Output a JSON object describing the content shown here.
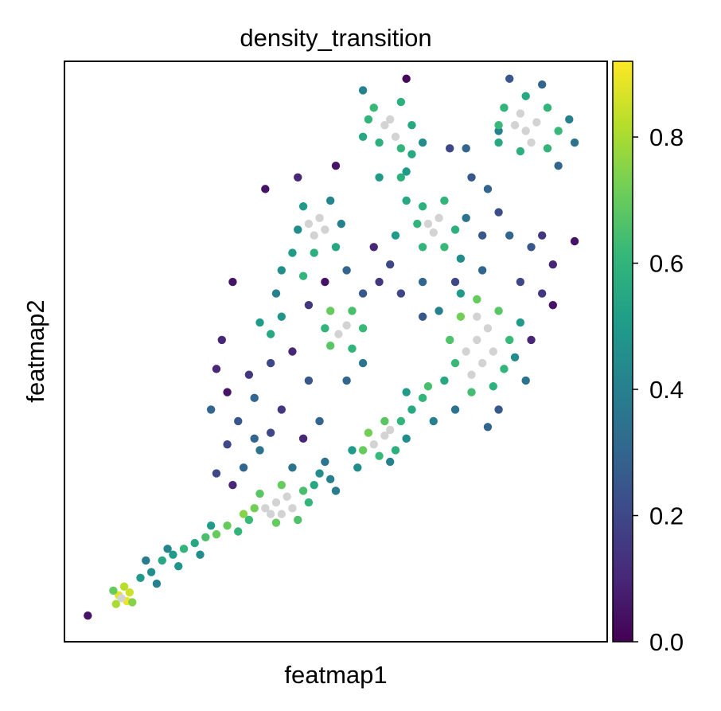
{
  "chart_data": {
    "type": "scatter",
    "title": "density_transition",
    "x_label": "featmap1",
    "y_label": "featmap2",
    "xlim": [
      0,
      100
    ],
    "ylim": [
      0,
      100
    ],
    "na_color": "#d3d3d3",
    "x": [
      62,
      58,
      55,
      66,
      60,
      57,
      52,
      48,
      45,
      42,
      38,
      35,
      32,
      30,
      33,
      36,
      28,
      31,
      40,
      45,
      52,
      55,
      47,
      44,
      38,
      30,
      28,
      27,
      34,
      29,
      31,
      43,
      50,
      63,
      37,
      71,
      75,
      78,
      80,
      82,
      86,
      88,
      90,
      84,
      88,
      90,
      86,
      77,
      72,
      77,
      94,
      80,
      78,
      72,
      68,
      80,
      74,
      66,
      35,
      42,
      14,
      16,
      18,
      20,
      17,
      22,
      24,
      26,
      28,
      25,
      30,
      32,
      27,
      21,
      19,
      15,
      33,
      37,
      39,
      41,
      38,
      42,
      40,
      35,
      36,
      40,
      44,
      43,
      39,
      34,
      45,
      46,
      47,
      49,
      48,
      50,
      57,
      59,
      60,
      55,
      56,
      59,
      62,
      61,
      58,
      53,
      54,
      60,
      63,
      64,
      66,
      67,
      63,
      74,
      76,
      78,
      77,
      75,
      79,
      76,
      72,
      71,
      73,
      76,
      80,
      82,
      81,
      79,
      75,
      70,
      84,
      83,
      85,
      73,
      69,
      67,
      69,
      68,
      65,
      66,
      70,
      72,
      70,
      66,
      63,
      62,
      64,
      61,
      73,
      74,
      59,
      61,
      60,
      56,
      57,
      62,
      64,
      62,
      58,
      55,
      58,
      55,
      66,
      63,
      83,
      85,
      87,
      84,
      86,
      80,
      81,
      85,
      89,
      91,
      89,
      84,
      80,
      93,
      88,
      82,
      94,
      91,
      45,
      47,
      48,
      46,
      43,
      44,
      49,
      51,
      50,
      46,
      42,
      40,
      44,
      39,
      50.5,
      52,
      48,
      49,
      53,
      55,
      53,
      49,
      36,
      38,
      40,
      10,
      11.5,
      12,
      9.5,
      11,
      10.5,
      12.5,
      9,
      4.3
    ],
    "y": [
      60,
      62,
      60,
      62,
      65,
      68,
      64,
      62,
      58,
      50,
      48,
      42,
      38,
      34,
      30,
      33,
      29,
      27,
      40,
      45,
      45,
      48,
      38,
      35,
      36,
      43,
      47,
      40,
      46,
      52,
      62,
      80,
      82,
      97,
      78,
      85,
      80,
      78,
      74,
      70,
      68,
      70,
      65,
      62,
      60,
      58,
      52,
      64,
      62,
      70,
      69,
      40,
      37,
      40,
      38,
      88,
      85,
      56,
      35,
      30,
      11,
      12,
      14,
      15,
      10,
      16,
      17,
      18,
      18.5,
      15,
      20,
      19,
      20,
      13,
      16,
      14,
      22,
      23,
      24,
      25,
      22,
      23,
      22,
      23,
      25.5,
      27,
      26,
      21,
      20.5,
      21,
      24,
      27,
      29,
      28,
      31,
      26,
      34,
      35.5,
      36.5,
      33,
      36,
      38,
      38,
      33,
      32,
      33,
      30,
      31,
      35,
      40,
      42,
      44,
      43,
      50,
      52,
      54,
      48,
      46,
      50,
      56,
      48,
      52,
      56,
      59,
      57,
      52,
      47,
      44,
      43,
      45,
      55,
      49,
      45,
      60,
      57,
      72,
      73,
      70.5,
      72,
      75,
      76,
      71,
      68,
      68,
      76,
      80,
      84,
      70,
      66,
      73,
      89,
      87,
      90,
      90,
      92,
      93,
      89,
      85,
      86,
      87,
      80,
      95,
      86,
      81,
      89,
      88,
      89.5,
      91,
      86,
      89,
      92,
      94,
      92,
      88,
      85,
      84.5,
      86,
      90,
      96,
      97,
      86,
      82,
      72,
      73,
      71,
      70,
      71,
      75,
      76,
      72,
      68,
      67,
      67,
      64,
      63,
      60,
      53,
      54.5,
      54,
      57,
      57,
      54,
      50.5,
      51,
      55,
      53,
      56,
      8,
      7,
      8.5,
      6.5,
      9.5,
      7.5,
      6.8,
      8.8,
      4.5
    ],
    "values": [
      0.2,
      0.15,
      0.25,
      0.3,
      0.2,
      0.1,
      0.3,
      0.05,
      0.15,
      0.1,
      0.2,
      0.3,
      0.25,
      0.2,
      0.3,
      0.35,
      0.2,
      0.1,
      0.15,
      0.25,
      0.3,
      0.35,
      0.3,
      0.1,
      0.2,
      0.05,
      0.1,
      0.3,
      0.15,
      0.1,
      0.05,
      0.1,
      0.05,
      0.02,
      0.05,
      0.2,
      0.25,
      0.3,
      0.22,
      0.3,
      0.25,
      0.15,
      0.1,
      0.2,
      0.15,
      0.05,
      0.1,
      0.3,
      0.2,
      0.25,
      0.05,
      0.25,
      0.3,
      0.35,
      0.4,
      0.4,
      0.3,
      0.25,
      0.3,
      0.35,
      0.5,
      0.45,
      0.55,
      0.5,
      0.4,
      0.6,
      0.55,
      0.65,
      0.7,
      0.45,
      0.7,
      0.6,
      0.5,
      0.48,
      0.42,
      0.38,
      0.75,
      null,
      null,
      null,
      null,
      null,
      null,
      0.72,
      0.68,
      0.7,
      0.65,
      0.66,
      0.7,
      0.62,
      0.6,
      0.55,
      0.45,
      0.4,
      0.35,
      0.38,
      null,
      null,
      null,
      0.7,
      0.72,
      0.68,
      0.6,
      0.58,
      0.62,
      0.5,
      0.45,
      0.4,
      0.45,
      0.55,
      0.6,
      0.65,
      0.5,
      null,
      null,
      null,
      null,
      null,
      null,
      null,
      0.62,
      0.66,
      0.72,
      0.7,
      0.68,
      0.62,
      0.6,
      0.58,
      0.64,
      0.55,
      0.5,
      0.45,
      0.35,
      0.5,
      0.4,
      null,
      null,
      null,
      0.6,
      0.58,
      0.6,
      0.58,
      0.62,
      0.6,
      0.55,
      0.58,
      0.55,
      0.5,
      0.45,
      0.35,
      null,
      null,
      null,
      0.6,
      0.62,
      0.58,
      0.55,
      0.6,
      0.58,
      0.55,
      0.5,
      0.4,
      0.45,
      0.5,
      null,
      null,
      null,
      null,
      null,
      0.62,
      0.6,
      0.55,
      0.6,
      0.62,
      0.6,
      0.58,
      0.55,
      0.4,
      0.3,
      0.25,
      0.35,
      0.3,
      null,
      null,
      null,
      null,
      0.45,
      0.5,
      0.42,
      0.4,
      0.55,
      0.58,
      0.5,
      0.45,
      0.6,
      0.4,
      null,
      null,
      0.6,
      0.7,
      0.65,
      0.62,
      0.6,
      0.68,
      0.5,
      0.55,
      0.48,
      0.88,
      0.9,
      0.85,
      0.8,
      0.82,
      null,
      0.75,
      0.7,
      0.05
    ],
    "colorbar": {
      "cmap": "viridis",
      "lim": [
        0,
        0.92
      ],
      "ticks": [
        {
          "value": 0,
          "label": "0.0"
        },
        0.2,
        0.4,
        0.6,
        0.8
      ]
    }
  }
}
